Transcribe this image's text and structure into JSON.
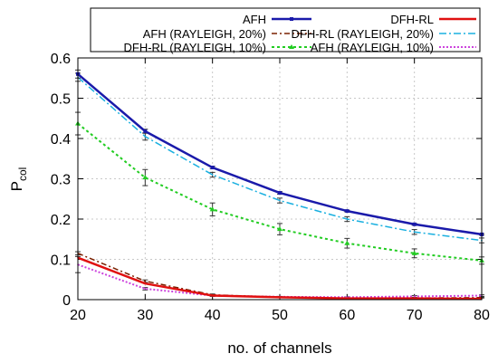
{
  "chart_data": {
    "type": "line",
    "xlabel": "no. of channels",
    "ylabel": "P",
    "ylabel_sub": "col",
    "xlim": [
      20,
      80
    ],
    "ylim": [
      0,
      0.6
    ],
    "xticks": [
      20,
      30,
      40,
      50,
      60,
      70,
      80
    ],
    "yticks": [
      0,
      0.1,
      0.2,
      0.3,
      0.4,
      0.5,
      0.6
    ],
    "ytick_labels": [
      "0",
      "0.1",
      "0.2",
      "0.3",
      "0.4",
      "0.5",
      "0.6"
    ],
    "legend_position": "top-right",
    "x": [
      20,
      30,
      40,
      50,
      60,
      70,
      80
    ],
    "series": [
      {
        "name": "AFH",
        "color": "#1a1aaa",
        "dash": "",
        "width": 2.5,
        "marker": "square",
        "values": [
          0.56,
          0.418,
          0.328,
          0.265,
          0.22,
          0.187,
          0.162
        ],
        "errors": [
          0.01,
          0.005,
          0.003,
          0.003,
          0.002,
          0.002,
          0.002
        ]
      },
      {
        "name": "DFH-RL",
        "color": "#e01010",
        "dash": "",
        "width": 2.5,
        "marker": "none",
        "values": [
          0.104,
          0.04,
          0.01,
          0.006,
          0.003,
          0.003,
          0.002
        ],
        "errors": [
          0,
          0,
          0,
          0,
          0,
          0,
          0
        ]
      },
      {
        "name": "AFH (RAYLEIGH, 20%)",
        "color": "#7a2000",
        "dash": "6,3,2,3",
        "width": 1.5,
        "marker": "none",
        "values": [
          0.115,
          0.046,
          0.012,
          0.006,
          0.003,
          0.004,
          0.005
        ],
        "errors": [
          0.004,
          0.003,
          0.002,
          0.001,
          0.001,
          0.001,
          0.001
        ]
      },
      {
        "name": "DFH-RL (RAYLEIGH, 20%)",
        "color": "#1ab0e0",
        "dash": "8,3,2,3",
        "width": 1.5,
        "marker": "none",
        "values": [
          0.552,
          0.405,
          0.31,
          0.246,
          0.2,
          0.168,
          0.147
        ],
        "errors": [
          0.01,
          0.009,
          0.006,
          0.006,
          0.006,
          0.006,
          0.006
        ]
      },
      {
        "name": "DFH-RL (RAYLEIGH, 10%)",
        "color": "#22cc22",
        "dash": "3,3",
        "width": 2,
        "marker": "triangle",
        "values": [
          0.437,
          0.303,
          0.224,
          0.175,
          0.14,
          0.115,
          0.097
        ],
        "errors": [
          0.028,
          0.02,
          0.016,
          0.014,
          0.012,
          0.011,
          0.009
        ]
      },
      {
        "name": "AFH (RAYLEIGH, 10%)",
        "color": "#cc44dd",
        "dash": "2,2",
        "width": 2,
        "marker": "none",
        "values": [
          0.087,
          0.027,
          0.01,
          0.007,
          0.006,
          0.008,
          0.01
        ],
        "errors": [
          0.02,
          0.003,
          0.002,
          0.001,
          0.001,
          0.002,
          0.002
        ]
      }
    ]
  }
}
